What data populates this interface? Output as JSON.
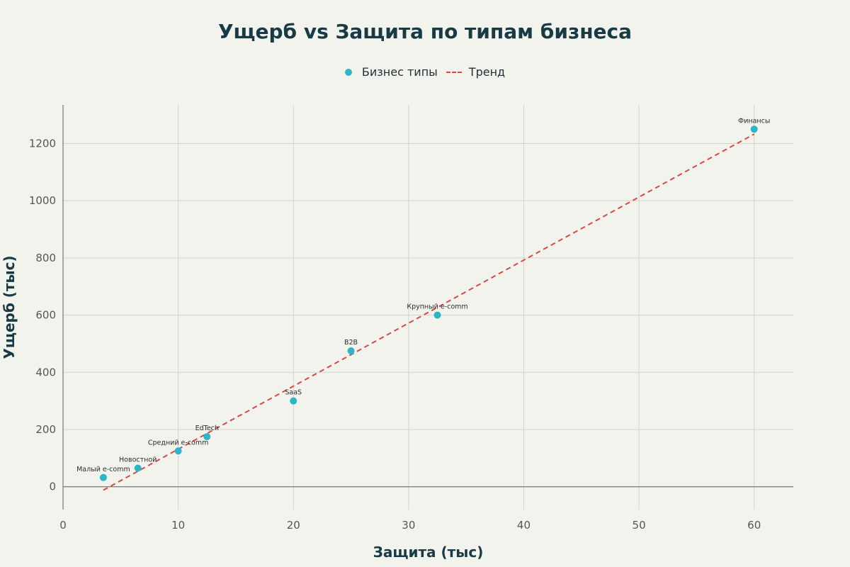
{
  "chart_data": {
    "type": "scatter",
    "title": "Ущерб vs Защита по типам бизнеса",
    "xlabel": "Защита (тыс)",
    "ylabel": "Ущерб (тыс)",
    "xlim": [
      0,
      63.4
    ],
    "ylim": [
      -80,
      1335
    ],
    "x_ticks": [
      0,
      10,
      20,
      30,
      40,
      50,
      60
    ],
    "y_ticks": [
      0,
      200,
      400,
      600,
      800,
      1000,
      1200
    ],
    "grid": true,
    "legend_position": "top-center",
    "series": [
      {
        "name": "Бизнес типы",
        "color": "#2bb5c8",
        "points": [
          {
            "label": "Малый e-comm",
            "x": 3.5,
            "y": 32
          },
          {
            "label": "Новостной",
            "x": 6.5,
            "y": 65
          },
          {
            "label": "Средний e-comm",
            "x": 10,
            "y": 125
          },
          {
            "label": "EdTech",
            "x": 12.5,
            "y": 175
          },
          {
            "label": "SaaS",
            "x": 20,
            "y": 300
          },
          {
            "label": "B2B",
            "x": 25,
            "y": 475
          },
          {
            "label": "Крупный e-comm",
            "x": 32.5,
            "y": 600
          },
          {
            "label": "Финансы",
            "x": 60,
            "y": 1250
          }
        ]
      },
      {
        "name": "Тренд",
        "color": "#d94a43",
        "type": "line",
        "dash": true,
        "points": [
          {
            "x": 3.5,
            "y": -12
          },
          {
            "x": 60,
            "y": 1233
          }
        ]
      }
    ]
  }
}
